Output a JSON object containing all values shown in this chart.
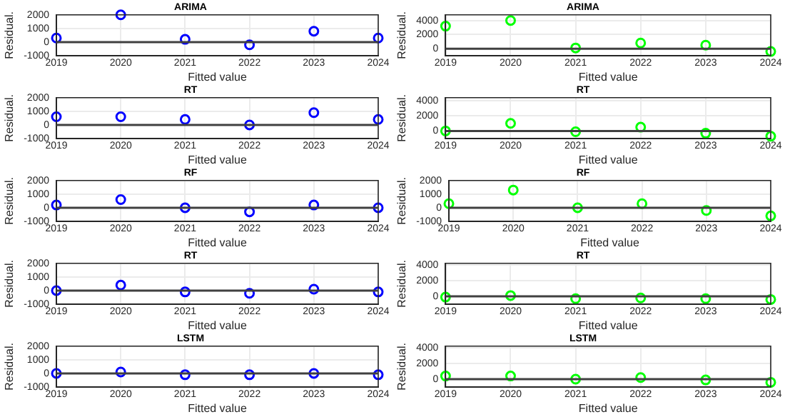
{
  "chart_data": [
    {
      "type": "scatter",
      "title": "ARIMA",
      "xlabel": "Fitted value",
      "ylabel": "Residual.",
      "x": [
        2019,
        2020,
        2021,
        2022,
        2023,
        2024
      ],
      "series": [
        {
          "color": "#0000ff",
          "values": [
            300,
            2000,
            200,
            -200,
            800,
            300
          ]
        }
      ],
      "xlim": [
        2019,
        2024
      ],
      "xticks": [
        2019,
        2020,
        2021,
        2022,
        2023,
        2024
      ],
      "ylim": [
        -1000,
        2000
      ],
      "yticks": [
        -1000,
        0,
        1000,
        2000
      ],
      "grid": true,
      "marker": "circle",
      "legend": false,
      "ref_lines": [
        {
          "axis": "y",
          "value": 0,
          "color": "#404040"
        }
      ]
    },
    {
      "type": "scatter",
      "title": "ARIMA",
      "xlabel": "Fitted value",
      "ylabel": "Residual.",
      "x": [
        2019,
        2020,
        2021,
        2022,
        2023,
        2024
      ],
      "series": [
        {
          "color": "#00ff00",
          "values": [
            3200,
            4000,
            100,
            800,
            500,
            -400
          ]
        }
      ],
      "xlim": [
        2019,
        2024
      ],
      "xticks": [
        2019,
        2020,
        2021,
        2022,
        2023,
        2024
      ],
      "ylim": [
        -1000,
        4800
      ],
      "yticks": [
        0,
        2000,
        4000
      ],
      "grid": true,
      "marker": "circle",
      "legend": false,
      "ref_lines": [
        {
          "axis": "y",
          "value": 0,
          "color": "#404040"
        }
      ]
    },
    {
      "type": "scatter",
      "title": "RT",
      "xlabel": "Fitted value",
      "ylabel": "Residual.",
      "x": [
        2019,
        2020,
        2021,
        2022,
        2023,
        2024
      ],
      "series": [
        {
          "color": "#0000ff",
          "values": [
            600,
            600,
            400,
            0,
            900,
            400
          ]
        }
      ],
      "xlim": [
        2019,
        2024
      ],
      "xticks": [
        2019,
        2020,
        2021,
        2022,
        2023,
        2024
      ],
      "ylim": [
        -1000,
        2000
      ],
      "yticks": [
        -1000,
        0,
        1000,
        2000
      ],
      "grid": true,
      "marker": "circle",
      "legend": false,
      "ref_lines": [
        {
          "axis": "y",
          "value": 0,
          "color": "#404040"
        }
      ]
    },
    {
      "type": "scatter",
      "title": "RT",
      "xlabel": "Fitted value",
      "ylabel": "Residual.",
      "x": [
        2019,
        2020,
        2021,
        2022,
        2023,
        2024
      ],
      "series": [
        {
          "color": "#00ff00",
          "values": [
            0,
            1000,
            -100,
            500,
            -300,
            -700
          ]
        }
      ],
      "xlim": [
        2019,
        2024
      ],
      "xticks": [
        2019,
        2020,
        2021,
        2022,
        2023,
        2024
      ],
      "ylim": [
        -1000,
        4400
      ],
      "yticks": [
        0,
        2000,
        4000
      ],
      "grid": true,
      "marker": "circle",
      "legend": false,
      "ref_lines": [
        {
          "axis": "y",
          "value": 0,
          "color": "#404040"
        }
      ]
    },
    {
      "type": "scatter",
      "title": "RF",
      "xlabel": "Fitted value",
      "ylabel": "Residual.",
      "x": [
        2019,
        2020,
        2021,
        2022,
        2023,
        2024
      ],
      "series": [
        {
          "color": "#0000ff",
          "values": [
            200,
            600,
            0,
            -300,
            200,
            0
          ]
        }
      ],
      "xlim": [
        2019,
        2024
      ],
      "xticks": [
        2019,
        2020,
        2021,
        2022,
        2023,
        2024
      ],
      "ylim": [
        -1000,
        2000
      ],
      "yticks": [
        -1000,
        0,
        1000,
        2000
      ],
      "grid": true,
      "marker": "circle",
      "legend": false,
      "ref_lines": [
        {
          "axis": "y",
          "value": 0,
          "color": "#404040"
        }
      ]
    },
    {
      "type": "scatter",
      "title": "RF",
      "xlabel": "Fitted value",
      "ylabel": "Residual.",
      "x": [
        2019,
        2020,
        2021,
        2022,
        2023,
        2024
      ],
      "series": [
        {
          "color": "#00ff00",
          "values": [
            300,
            1300,
            0,
            300,
            -200,
            -600
          ]
        }
      ],
      "xlim": [
        2019,
        2024
      ],
      "xticks": [
        2019,
        2020,
        2021,
        2022,
        2023,
        2024
      ],
      "ylim": [
        -1000,
        2000
      ],
      "yticks": [
        -1000,
        0,
        1000,
        2000
      ],
      "grid": true,
      "marker": "circle",
      "legend": false,
      "ref_lines": [
        {
          "axis": "y",
          "value": 0,
          "color": "#404040"
        }
      ]
    },
    {
      "type": "scatter",
      "title": "RT",
      "xlabel": "Fitted value",
      "ylabel": "Residual.",
      "x": [
        2019,
        2020,
        2021,
        2022,
        2023,
        2024
      ],
      "series": [
        {
          "color": "#0000ff",
          "values": [
            0,
            400,
            -100,
            -200,
            100,
            -100
          ]
        }
      ],
      "xlim": [
        2019,
        2024
      ],
      "xticks": [
        2019,
        2020,
        2021,
        2022,
        2023,
        2024
      ],
      "ylim": [
        -1000,
        2000
      ],
      "yticks": [
        -1000,
        0,
        1000,
        2000
      ],
      "grid": true,
      "marker": "circle",
      "legend": false,
      "ref_lines": [
        {
          "axis": "y",
          "value": 0,
          "color": "#404040"
        }
      ]
    },
    {
      "type": "scatter",
      "title": "RT",
      "xlabel": "Fitted value",
      "ylabel": "Residual.",
      "x": [
        2019,
        2020,
        2021,
        2022,
        2023,
        2024
      ],
      "series": [
        {
          "color": "#00ff00",
          "values": [
            -100,
            100,
            -300,
            -200,
            -300,
            -400
          ]
        }
      ],
      "xlim": [
        2019,
        2024
      ],
      "xticks": [
        2019,
        2020,
        2021,
        2022,
        2023,
        2024
      ],
      "ylim": [
        -1000,
        4200
      ],
      "yticks": [
        0,
        2000,
        4000
      ],
      "grid": true,
      "marker": "circle",
      "legend": false,
      "ref_lines": [
        {
          "axis": "y",
          "value": 0,
          "color": "#404040"
        }
      ]
    },
    {
      "type": "scatter",
      "title": "LSTM",
      "xlabel": "Fitted value",
      "ylabel": "Residual.",
      "x": [
        2019,
        2020,
        2021,
        2022,
        2023,
        2024
      ],
      "series": [
        {
          "color": "#0000ff",
          "values": [
            0,
            100,
            -100,
            -100,
            0,
            -100
          ]
        }
      ],
      "xlim": [
        2019,
        2024
      ],
      "xticks": [
        2019,
        2020,
        2021,
        2022,
        2023,
        2024
      ],
      "ylim": [
        -1000,
        2000
      ],
      "yticks": [
        -1000,
        0,
        1000,
        2000
      ],
      "grid": true,
      "marker": "circle",
      "legend": false,
      "ref_lines": [
        {
          "axis": "y",
          "value": 0,
          "color": "#404040"
        }
      ]
    },
    {
      "type": "scatter",
      "title": "LSTM",
      "xlabel": "Fitted value",
      "ylabel": "Residual.",
      "x": [
        2019,
        2020,
        2021,
        2022,
        2023,
        2024
      ],
      "series": [
        {
          "color": "#00ff00",
          "values": [
            400,
            400,
            0,
            200,
            -100,
            -400
          ]
        }
      ],
      "xlim": [
        2019,
        2024
      ],
      "xticks": [
        2019,
        2020,
        2021,
        2022,
        2023,
        2024
      ],
      "ylim": [
        -1000,
        4200
      ],
      "yticks": [
        0,
        2000,
        4000
      ],
      "grid": true,
      "marker": "circle",
      "legend": false,
      "ref_lines": [
        {
          "axis": "y",
          "value": 0,
          "color": "#404040"
        }
      ]
    }
  ]
}
